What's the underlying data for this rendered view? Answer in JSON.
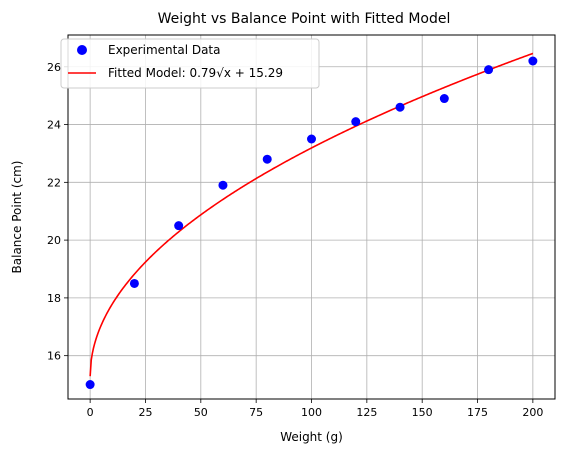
{
  "chart_data": {
    "type": "scatter",
    "title": "Weight vs Balance Point with Fitted Model",
    "xlabel": "Weight (g)",
    "ylabel": "Balance Point (cm)",
    "xlim": [
      -10,
      210
    ],
    "ylim": [
      14.5,
      27.1
    ],
    "xticks": [
      0,
      25,
      50,
      75,
      100,
      125,
      150,
      175,
      200
    ],
    "yticks": [
      16,
      18,
      20,
      22,
      24,
      26
    ],
    "grid": true,
    "legend_position": "top-left",
    "series": [
      {
        "name": "Experimental Data",
        "kind": "scatter",
        "color": "#0000ff",
        "x": [
          0,
          20,
          40,
          60,
          80,
          100,
          120,
          140,
          160,
          180,
          200
        ],
        "y": [
          15.0,
          18.5,
          20.5,
          21.9,
          22.8,
          23.5,
          24.1,
          24.6,
          24.9,
          25.9,
          26.2
        ]
      },
      {
        "name": "Fitted Model: 0.79√x + 15.29",
        "kind": "line",
        "color": "#ff0000",
        "model": {
          "a": 0.79,
          "b": 15.29,
          "x_range": [
            0,
            200
          ]
        }
      }
    ]
  }
}
